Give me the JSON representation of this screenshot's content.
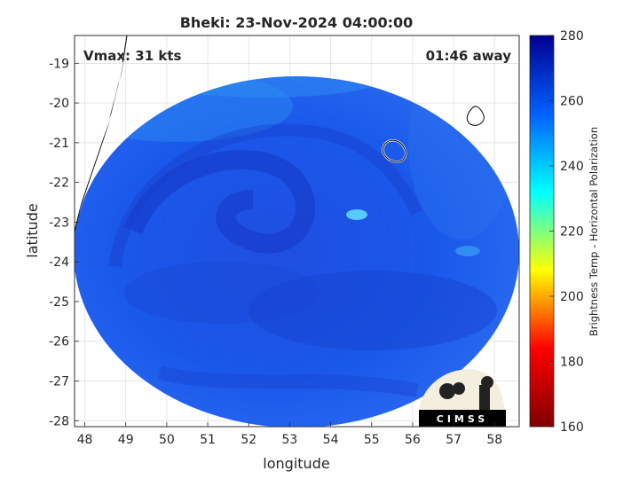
{
  "chart_data": {
    "type": "heatmap",
    "title": "Bheki: 23-Nov-2024 04:00:00",
    "xlabel": "longitude",
    "ylabel": "latitude",
    "xlim": [
      47.75,
      58.6
    ],
    "ylim": [
      -28.15,
      -18.3
    ],
    "xticks": [
      48,
      49,
      50,
      51,
      52,
      53,
      54,
      55,
      56,
      57,
      58
    ],
    "yticks": [
      -19,
      -20,
      -21,
      -22,
      -23,
      -24,
      -25,
      -26,
      -27,
      -28
    ],
    "grid": true,
    "annotations": {
      "left": "Vmax: 31 kts",
      "right": "01:46 away"
    },
    "storm_center": {
      "lon": 52.5,
      "lat": -22.9
    },
    "colorbar": {
      "label": "Brightness Temp - Horizontal Polarization",
      "range": [
        160,
        280
      ],
      "ticks": [
        160,
        180,
        200,
        220,
        240,
        260,
        280
      ],
      "colors": [
        "#7f0000",
        "#ff0000",
        "#ffff00",
        "#00ffff",
        "#0060ff",
        "#00008f"
      ]
    },
    "logo": "CIMSS"
  }
}
